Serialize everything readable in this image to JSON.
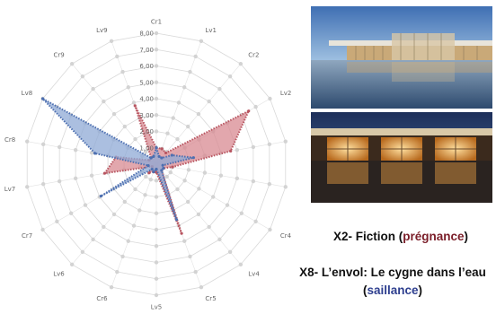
{
  "chart_data": {
    "type": "radar",
    "axes": [
      "Cr1",
      "Lv1",
      "Cr2",
      "Lv2",
      "Cr3",
      "Lv3",
      "Cr4",
      "Lv4",
      "Cr5",
      "Lv5",
      "Cr6",
      "Lv6",
      "Cr7",
      "Lv7",
      "Cr8",
      "Lv8",
      "Cr9",
      "Lv9"
    ],
    "tick_labels": [
      "1,00",
      "2,00",
      "3,00",
      "4,00",
      "5,00",
      "6,00",
      "7,00",
      "8,00"
    ],
    "rlim": [
      0,
      8
    ],
    "series": [
      {
        "name": "X2",
        "color": "#b85560",
        "fill": "#d88a92",
        "values": [
          1.0,
          1.0,
          0.9,
          6.5,
          4.6,
          1.0,
          0.5,
          0.5,
          4.5,
          0.5,
          0.5,
          0.7,
          0.3,
          3.2,
          2.5,
          0.5,
          0.5,
          3.8
        ]
      },
      {
        "name": "X8",
        "color": "#4d6fb0",
        "fill": "#8fa9d6",
        "values": [
          1.0,
          0.5,
          0.5,
          1.1,
          2.3,
          0.4,
          0.5,
          0.5,
          3.6,
          0.3,
          0.5,
          0.4,
          3.9,
          0.5,
          3.8,
          8.0,
          0.5,
          0.5
        ]
      }
    ],
    "grid": true
  },
  "captions": {
    "x2_prefix": "X2- Fiction (",
    "x2_keyword": "prégnance",
    "x2_suffix": ")",
    "x8_prefix": "X8- L’envol: Le cygne dans l’eau (",
    "x8_keyword": "saillance",
    "x8_suffix": ")"
  },
  "colors": {
    "pregnance": "#7a1d28",
    "saillance": "#2e3f8f"
  }
}
